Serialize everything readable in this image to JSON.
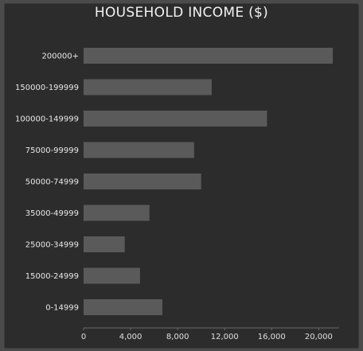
{
  "chart_data": {
    "type": "bar",
    "orientation": "horizontal",
    "title": "HOUSEHOLD INCOME ($)",
    "xlabel": "",
    "ylabel": "",
    "categories": [
      "200000+",
      "150000-199999",
      "100000-149999",
      "75000-99999",
      "50000-74999",
      "35000-49999",
      "25000-34999",
      "15000-24999",
      "0-14999"
    ],
    "values": [
      21200,
      10900,
      15600,
      9400,
      10000,
      5600,
      3500,
      4800,
      6700
    ],
    "xlim": [
      0,
      21600
    ],
    "xticks": [
      0,
      4000,
      8000,
      12000,
      16000,
      20000
    ],
    "xtick_labels": [
      "0",
      "4,000",
      "8,000",
      "12,000",
      "16,000",
      "20,000"
    ],
    "grid": false,
    "colors": {
      "bar": "#5a5a5a",
      "background": "#2c2c2c",
      "text": "#eeeeee"
    }
  }
}
